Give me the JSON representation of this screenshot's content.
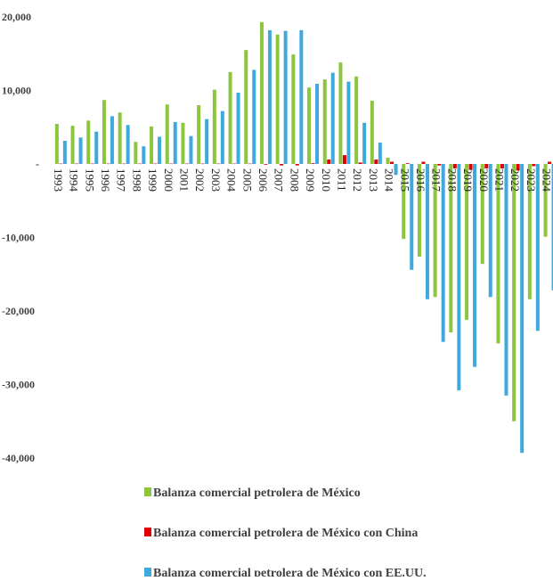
{
  "chart_data": {
    "type": "bar",
    "categories": [
      "1993",
      "1994",
      "1995",
      "1996",
      "1997",
      "1998",
      "1999",
      "2000",
      "2001",
      "2002",
      "2003",
      "2004",
      "2005",
      "2006",
      "2007",
      "2008",
      "2009",
      "2010",
      "2011",
      "2012",
      "2013",
      "2014",
      "2015",
      "2016",
      "2017",
      "2018",
      "2019",
      "2020",
      "2021",
      "2022",
      "2023",
      "2024"
    ],
    "series": [
      {
        "name": "Balanza comercial petrolera de México",
        "color": "#8cc63f",
        "values": [
          5450,
          5200,
          5900,
          8700,
          7000,
          3000,
          5100,
          8100,
          5600,
          8000,
          10100,
          12500,
          15500,
          19300,
          17600,
          14900,
          10400,
          11500,
          13800,
          11900,
          8600,
          850,
          -10200,
          -12600,
          -18100,
          -22900,
          -21200,
          -13600,
          -24400,
          -35000,
          -18400,
          -9900
        ]
      },
      {
        "name": "Balanza comercial petrolera de México con China",
        "color": "#e00000",
        "values": [
          50,
          50,
          50,
          50,
          50,
          50,
          50,
          50,
          50,
          50,
          50,
          50,
          50,
          -100,
          -200,
          -200,
          100,
          600,
          1200,
          200,
          600,
          300,
          100,
          300,
          -200,
          -600,
          -800,
          -600,
          -600,
          -900,
          -300,
          300
        ]
      },
      {
        "name": "Balanza comercial petrolera de México con EE.UU.",
        "color": "#3fa9de",
        "values": [
          3150,
          3600,
          4400,
          6500,
          5300,
          2400,
          3700,
          5700,
          3800,
          6100,
          7200,
          9700,
          12800,
          18200,
          18100,
          18200,
          10900,
          12400,
          11200,
          5600,
          2900,
          -1500,
          -14400,
          -18400,
          -24200,
          -30800,
          -27600,
          -18100,
          -31500,
          -39300,
          -22700,
          -17200
        ]
      }
    ],
    "ylim": [
      -40000,
      20000
    ],
    "yticks": [
      {
        "value": 20000,
        "label": "20,000"
      },
      {
        "value": 10000,
        "label": "10,000"
      },
      {
        "value": 0,
        "label": "-"
      },
      {
        "value": -10000,
        "label": "-10,000"
      },
      {
        "value": -20000,
        "label": "-20,000"
      },
      {
        "value": -30000,
        "label": "-30,000"
      },
      {
        "value": -40000,
        "label": "-40,000"
      }
    ],
    "legend": "bottom"
  }
}
